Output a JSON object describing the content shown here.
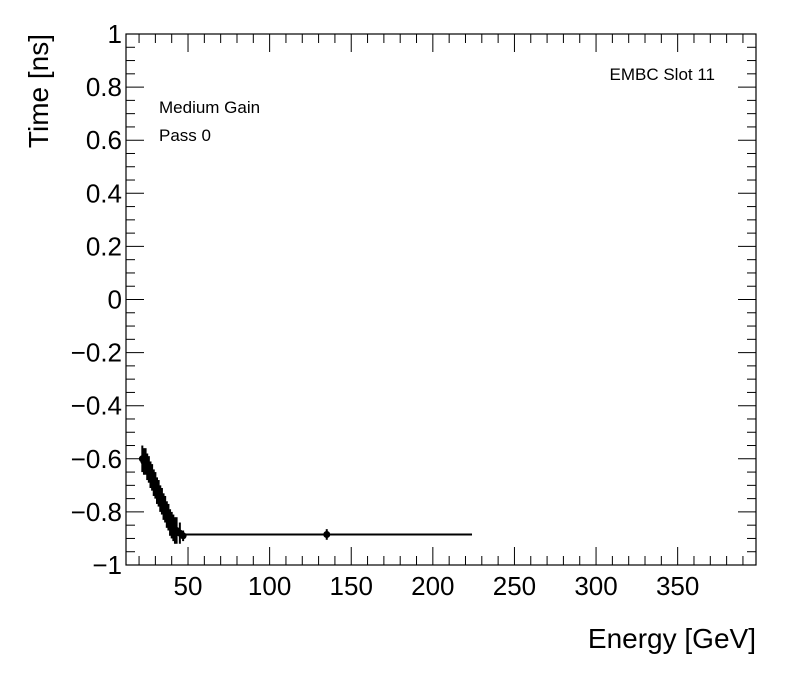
{
  "chart_data": {
    "type": "scatter",
    "xlabel": "Energy [GeV]",
    "ylabel": "Time [ns]",
    "xlim": [
      12,
      398
    ],
    "ylim": [
      -1,
      1
    ],
    "x_ticks": [
      {
        "value": 50,
        "label": "50"
      },
      {
        "value": 100,
        "label": "100"
      },
      {
        "value": 150,
        "label": "150"
      },
      {
        "value": 200,
        "label": "200"
      },
      {
        "value": 250,
        "label": "250"
      },
      {
        "value": 300,
        "label": "300"
      },
      {
        "value": 350,
        "label": "350"
      }
    ],
    "y_ticks": [
      {
        "value": 1,
        "label": "1"
      },
      {
        "value": 0.8,
        "label": "0.8"
      },
      {
        "value": 0.6,
        "label": "0.6"
      },
      {
        "value": 0.4,
        "label": "0.4"
      },
      {
        "value": 0.2,
        "label": "0.2"
      },
      {
        "value": 0,
        "label": "0"
      },
      {
        "value": -0.2,
        "label": "−0.2"
      },
      {
        "value": -0.4,
        "label": "−0.4"
      },
      {
        "value": -0.6,
        "label": "−0.6"
      },
      {
        "value": -0.8,
        "label": "−0.8"
      },
      {
        "value": -1,
        "label": "−1"
      }
    ],
    "annotations": {
      "top_right": "EMBC Slot 11",
      "top_left": [
        "Medium Gain",
        "Pass 0"
      ]
    },
    "grid": false,
    "series": [
      {
        "points": [
          {
            "x": 22.0,
            "y": -0.6,
            "yerr": 0.05,
            "xerr": 0.5
          },
          {
            "x": 23.0,
            "y": -0.61,
            "yerr": 0.05,
            "xerr": 0.5
          },
          {
            "x": 24.0,
            "y": -0.61,
            "yerr": 0.05,
            "xerr": 0.5
          },
          {
            "x": 25.0,
            "y": -0.63,
            "yerr": 0.05,
            "xerr": 0.5
          },
          {
            "x": 26.0,
            "y": -0.64,
            "yerr": 0.05,
            "xerr": 0.5
          },
          {
            "x": 27.0,
            "y": -0.66,
            "yerr": 0.05,
            "xerr": 0.5
          },
          {
            "x": 28.0,
            "y": -0.67,
            "yerr": 0.05,
            "xerr": 0.5
          },
          {
            "x": 29.0,
            "y": -0.69,
            "yerr": 0.05,
            "xerr": 0.5
          },
          {
            "x": 30.0,
            "y": -0.7,
            "yerr": 0.05,
            "xerr": 0.5
          },
          {
            "x": 31.0,
            "y": -0.72,
            "yerr": 0.05,
            "xerr": 0.5
          },
          {
            "x": 32.0,
            "y": -0.73,
            "yerr": 0.05,
            "xerr": 0.5
          },
          {
            "x": 33.0,
            "y": -0.75,
            "yerr": 0.05,
            "xerr": 0.5
          },
          {
            "x": 34.0,
            "y": -0.76,
            "yerr": 0.05,
            "xerr": 0.5
          },
          {
            "x": 35.0,
            "y": -0.78,
            "yerr": 0.05,
            "xerr": 0.5
          },
          {
            "x": 36.0,
            "y": -0.79,
            "yerr": 0.05,
            "xerr": 0.5
          },
          {
            "x": 37.0,
            "y": -0.81,
            "yerr": 0.05,
            "xerr": 0.5
          },
          {
            "x": 38.0,
            "y": -0.82,
            "yerr": 0.05,
            "xerr": 0.5
          },
          {
            "x": 39.0,
            "y": -0.84,
            "yerr": 0.05,
            "xerr": 0.5
          },
          {
            "x": 40.0,
            "y": -0.85,
            "yerr": 0.05,
            "xerr": 0.5
          },
          {
            "x": 41.0,
            "y": -0.86,
            "yerr": 0.05,
            "xerr": 0.5
          },
          {
            "x": 42.0,
            "y": -0.87,
            "yerr": 0.05,
            "xerr": 0.5
          },
          {
            "x": 43.0,
            "y": -0.87,
            "yerr": 0.05,
            "xerr": 0.5
          },
          {
            "x": 45.0,
            "y": -0.88,
            "yerr": 0.04,
            "xerr": 1.0
          },
          {
            "x": 47.0,
            "y": -0.89,
            "yerr": 0.02,
            "xerr": 1.0
          },
          {
            "x": 135.0,
            "y": -0.885,
            "yerr": 0.02,
            "xerr": 89.0
          }
        ]
      }
    ]
  }
}
